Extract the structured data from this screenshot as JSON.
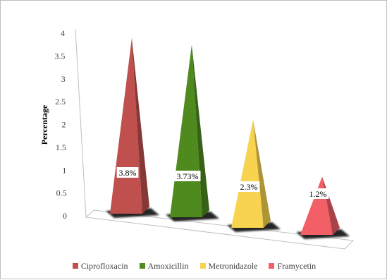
{
  "chart_data": {
    "type": "bar",
    "style": "3d-pyramid",
    "categories": [
      "Ciprofloxacin",
      "Amoxicillin",
      "Metronidazole",
      "Framycetin"
    ],
    "values": [
      3.8,
      3.73,
      2.3,
      1.2
    ],
    "data_labels": [
      "3.8%",
      "3.73%",
      "2.3%",
      "1.2%"
    ],
    "colors": [
      "#c0504d",
      "#4f8a1f",
      "#f7d34f",
      "#f25f66"
    ],
    "title": "",
    "xlabel": "",
    "ylabel": "Percentage",
    "ylim": [
      0,
      4
    ],
    "yticks": [
      "0",
      "0.5",
      "1",
      "1.5",
      "2",
      "2.5",
      "3",
      "3.5",
      "4"
    ],
    "legend_position": "bottom",
    "grid": false
  }
}
